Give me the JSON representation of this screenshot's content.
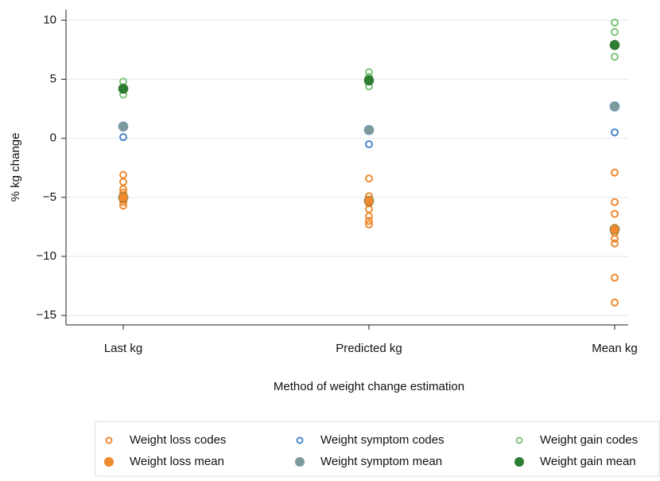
{
  "chart_data": {
    "type": "strip",
    "y_label": "% kg change",
    "x_label": "Method of weight change estimation",
    "categories": [
      "Last kg",
      "Predicted kg",
      "Mean kg"
    ],
    "ylim": [
      -15.8,
      10.9
    ],
    "yticks": [
      10,
      5,
      0,
      {
        "value": -5,
        "label": "−5"
      },
      {
        "value": -10,
        "label": "−10"
      },
      {
        "value": -15,
        "label": "−15"
      }
    ],
    "grid": true,
    "legend": "bottom",
    "series": [
      {
        "name": "Weight loss codes",
        "color": "#ef8a2f",
        "filled": false,
        "values": [
          [
            -3.1,
            -3.7,
            -4.3,
            -4.6,
            -4.9,
            -5.2,
            -5.4,
            -5.7
          ],
          [
            -3.4,
            -4.9,
            -5.3,
            -5.5,
            -6.0,
            -6.6,
            -7.0,
            -7.3
          ],
          [
            -2.9,
            -5.4,
            -6.4,
            -7.6,
            -8.0,
            -8.5,
            -8.9,
            -11.8,
            -13.9
          ]
        ]
      },
      {
        "name": "Weight loss mean",
        "color": "#ef8a2f",
        "filled": true,
        "values": [
          -5.0,
          -5.3,
          -7.7
        ]
      },
      {
        "name": "Weight symptom codes",
        "color": "#4a86c8",
        "filled": false,
        "values": [
          [
            1.0,
            0.1
          ],
          [
            0.7,
            -0.5
          ],
          [
            2.7,
            0.5
          ]
        ]
      },
      {
        "name": "Weight symptom mean",
        "color": "#7f9a9a",
        "filled": true,
        "values": [
          1.0,
          0.7,
          2.7
        ]
      },
      {
        "name": "Weight gain codes",
        "color": "#7cc47a",
        "filled": false,
        "values": [
          [
            4.8,
            3.7,
            4.3
          ],
          [
            5.6,
            4.4,
            5.2
          ],
          [
            9.8,
            9.0,
            6.9
          ]
        ]
      },
      {
        "name": "Weight gain mean",
        "color": "#2e7d32",
        "filled": true,
        "values": [
          4.2,
          4.9,
          7.9
        ]
      }
    ]
  }
}
